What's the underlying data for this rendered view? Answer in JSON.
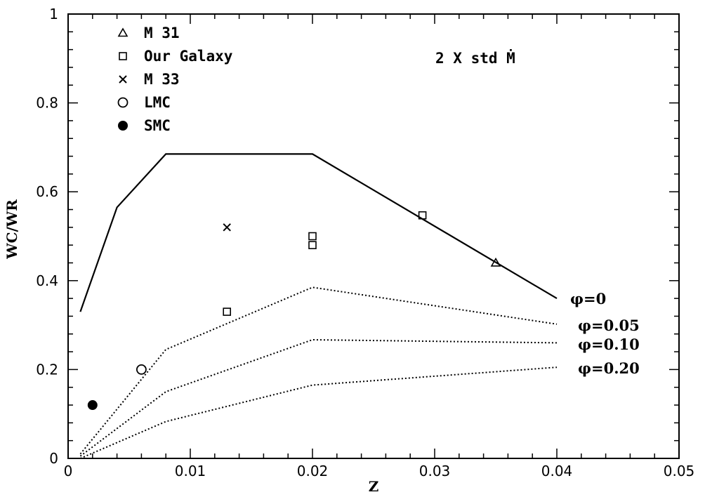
{
  "chart_data": {
    "type": "line",
    "title": "",
    "xlabel": "Z",
    "ylabel": "WC/WR",
    "xlim": [
      0,
      0.05
    ],
    "ylim": [
      0,
      1
    ],
    "xticks": [
      "0",
      "0.01",
      "0.02",
      "0.03",
      "0.04",
      "0.05"
    ],
    "yticks": [
      "0",
      "0.2",
      "0.4",
      "0.6",
      "0.8",
      "1"
    ],
    "annotation": "2 X std Ṁ",
    "legend_position": "top-left",
    "lines": [
      {
        "label": "φ=0",
        "style": "solid",
        "points": [
          [
            0.001,
            0.33
          ],
          [
            0.004,
            0.565
          ],
          [
            0.008,
            0.685
          ],
          [
            0.02,
            0.685
          ],
          [
            0.04,
            0.36
          ]
        ]
      },
      {
        "label": "φ=0.05",
        "style": "dotted",
        "points": [
          [
            0.001,
            0.01
          ],
          [
            0.008,
            0.245
          ],
          [
            0.02,
            0.385
          ],
          [
            0.04,
            0.302
          ]
        ]
      },
      {
        "label": "φ=0.10",
        "style": "dotted",
        "points": [
          [
            0.001,
            0.005
          ],
          [
            0.008,
            0.15
          ],
          [
            0.02,
            0.267
          ],
          [
            0.04,
            0.26
          ]
        ]
      },
      {
        "label": "φ=0.20",
        "style": "dotted",
        "points": [
          [
            0.001,
            0.0
          ],
          [
            0.008,
            0.083
          ],
          [
            0.02,
            0.165
          ],
          [
            0.04,
            0.205
          ]
        ]
      }
    ],
    "points": [
      {
        "group": "M 31",
        "marker": "triangle",
        "x": 0.035,
        "y": 0.44
      },
      {
        "group": "Our Galaxy",
        "marker": "square",
        "x": 0.029,
        "y": 0.547
      },
      {
        "group": "Our Galaxy",
        "marker": "square",
        "x": 0.02,
        "y": 0.5
      },
      {
        "group": "Our Galaxy",
        "marker": "square",
        "x": 0.02,
        "y": 0.48
      },
      {
        "group": "Our Galaxy",
        "marker": "square",
        "x": 0.013,
        "y": 0.33
      },
      {
        "group": "M 33",
        "marker": "cross",
        "x": 0.013,
        "y": 0.52
      },
      {
        "group": "LMC",
        "marker": "circle-open",
        "x": 0.006,
        "y": 0.2
      },
      {
        "group": "SMC",
        "marker": "circle-filled",
        "x": 0.002,
        "y": 0.12
      }
    ],
    "legend": [
      {
        "label": "M 31",
        "marker": "triangle"
      },
      {
        "label": "Our Galaxy",
        "marker": "square"
      },
      {
        "label": "M 33",
        "marker": "cross"
      },
      {
        "label": "LMC",
        "marker": "circle-open"
      },
      {
        "label": "SMC",
        "marker": "circle-filled"
      }
    ],
    "line_color": "#000000"
  }
}
